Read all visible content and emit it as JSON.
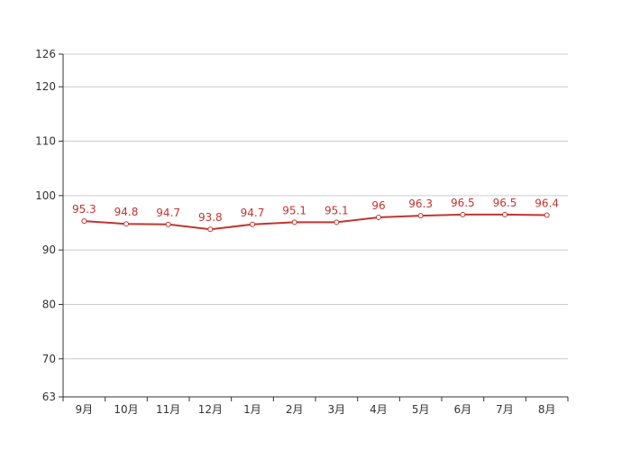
{
  "chart_data": {
    "type": "line",
    "title": "",
    "xlabel": "",
    "ylabel": "",
    "categories": [
      "9月",
      "10月",
      "11月",
      "12月",
      "1月",
      "2月",
      "3月",
      "4月",
      "5月",
      "6月",
      "7月",
      "8月"
    ],
    "series": [
      {
        "values": [
          95.3,
          94.8,
          94.7,
          93.8,
          94.7,
          95.1,
          95.1,
          96,
          96.3,
          96.5,
          96.5,
          96.4
        ]
      }
    ],
    "ylim": [
      63,
      126
    ],
    "yticks": [
      63,
      70,
      80,
      90,
      100,
      110,
      120,
      126
    ],
    "grid": true,
    "legend": "none",
    "data_labels": true
  },
  "colors": {
    "line": "#c23531",
    "grid": "#cccccc",
    "axis": "#333333",
    "point_fill": "#ffffff"
  }
}
